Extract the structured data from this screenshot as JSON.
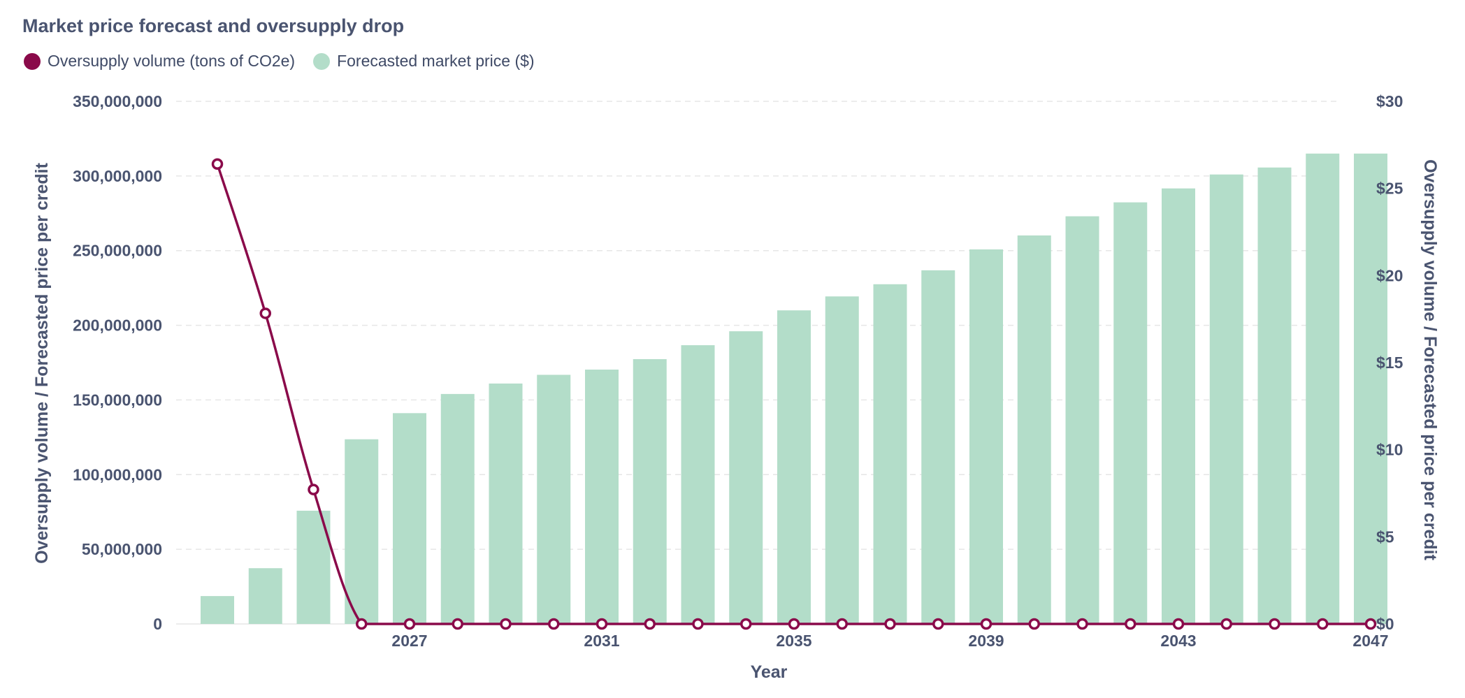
{
  "chart_data": {
    "type": "bar+line",
    "title": "Market price forecast and oversupply drop",
    "legend_position": "top-left",
    "grid": true,
    "colors": {
      "line": "#8a0a4a",
      "bar": "#b3ddc9",
      "grid": "#e6e6e6",
      "text": "#4a5470"
    },
    "x": [
      2023,
      2024,
      2025,
      2026,
      2027,
      2028,
      2029,
      2030,
      2031,
      2032,
      2033,
      2034,
      2035,
      2036,
      2037,
      2038,
      2039,
      2040,
      2041,
      2042,
      2043,
      2044,
      2045,
      2046,
      2047
    ],
    "x_ticks": [
      "2027",
      "2031",
      "2035",
      "2039",
      "2043",
      "2047"
    ],
    "xlabel": "Year",
    "y_left": {
      "label": "Oversupply volume / Forecasted price per credit",
      "range": [
        0,
        350000000
      ],
      "ticks": [
        "0",
        "50,000,000",
        "100,000,000",
        "150,000,000",
        "200,000,000",
        "250,000,000",
        "300,000,000",
        "350,000,000"
      ]
    },
    "y_right": {
      "label": "Oversupply volume / Forecasted price per credit",
      "range": [
        0,
        30
      ],
      "ticks": [
        "$0",
        "$5",
        "$10",
        "$15",
        "$20",
        "$25",
        "$30"
      ]
    },
    "series": [
      {
        "name": "Oversupply volume (tons of CO2e)",
        "type": "line",
        "axis": "left",
        "values": [
          308000000,
          208000000,
          90000000,
          0,
          0,
          0,
          0,
          0,
          0,
          0,
          0,
          0,
          0,
          0,
          0,
          0,
          0,
          0,
          0,
          0,
          0,
          0,
          0,
          0,
          0
        ]
      },
      {
        "name": "Forecasted market price ($)",
        "type": "bar",
        "axis": "right",
        "values": [
          1.6,
          3.2,
          6.5,
          10.6,
          12.1,
          13.2,
          13.8,
          14.3,
          14.6,
          15.2,
          16.0,
          16.8,
          18.0,
          18.8,
          19.5,
          20.3,
          21.5,
          22.3,
          23.4,
          24.2,
          25.0,
          25.8,
          26.2,
          27.0,
          27.0
        ]
      }
    ]
  }
}
